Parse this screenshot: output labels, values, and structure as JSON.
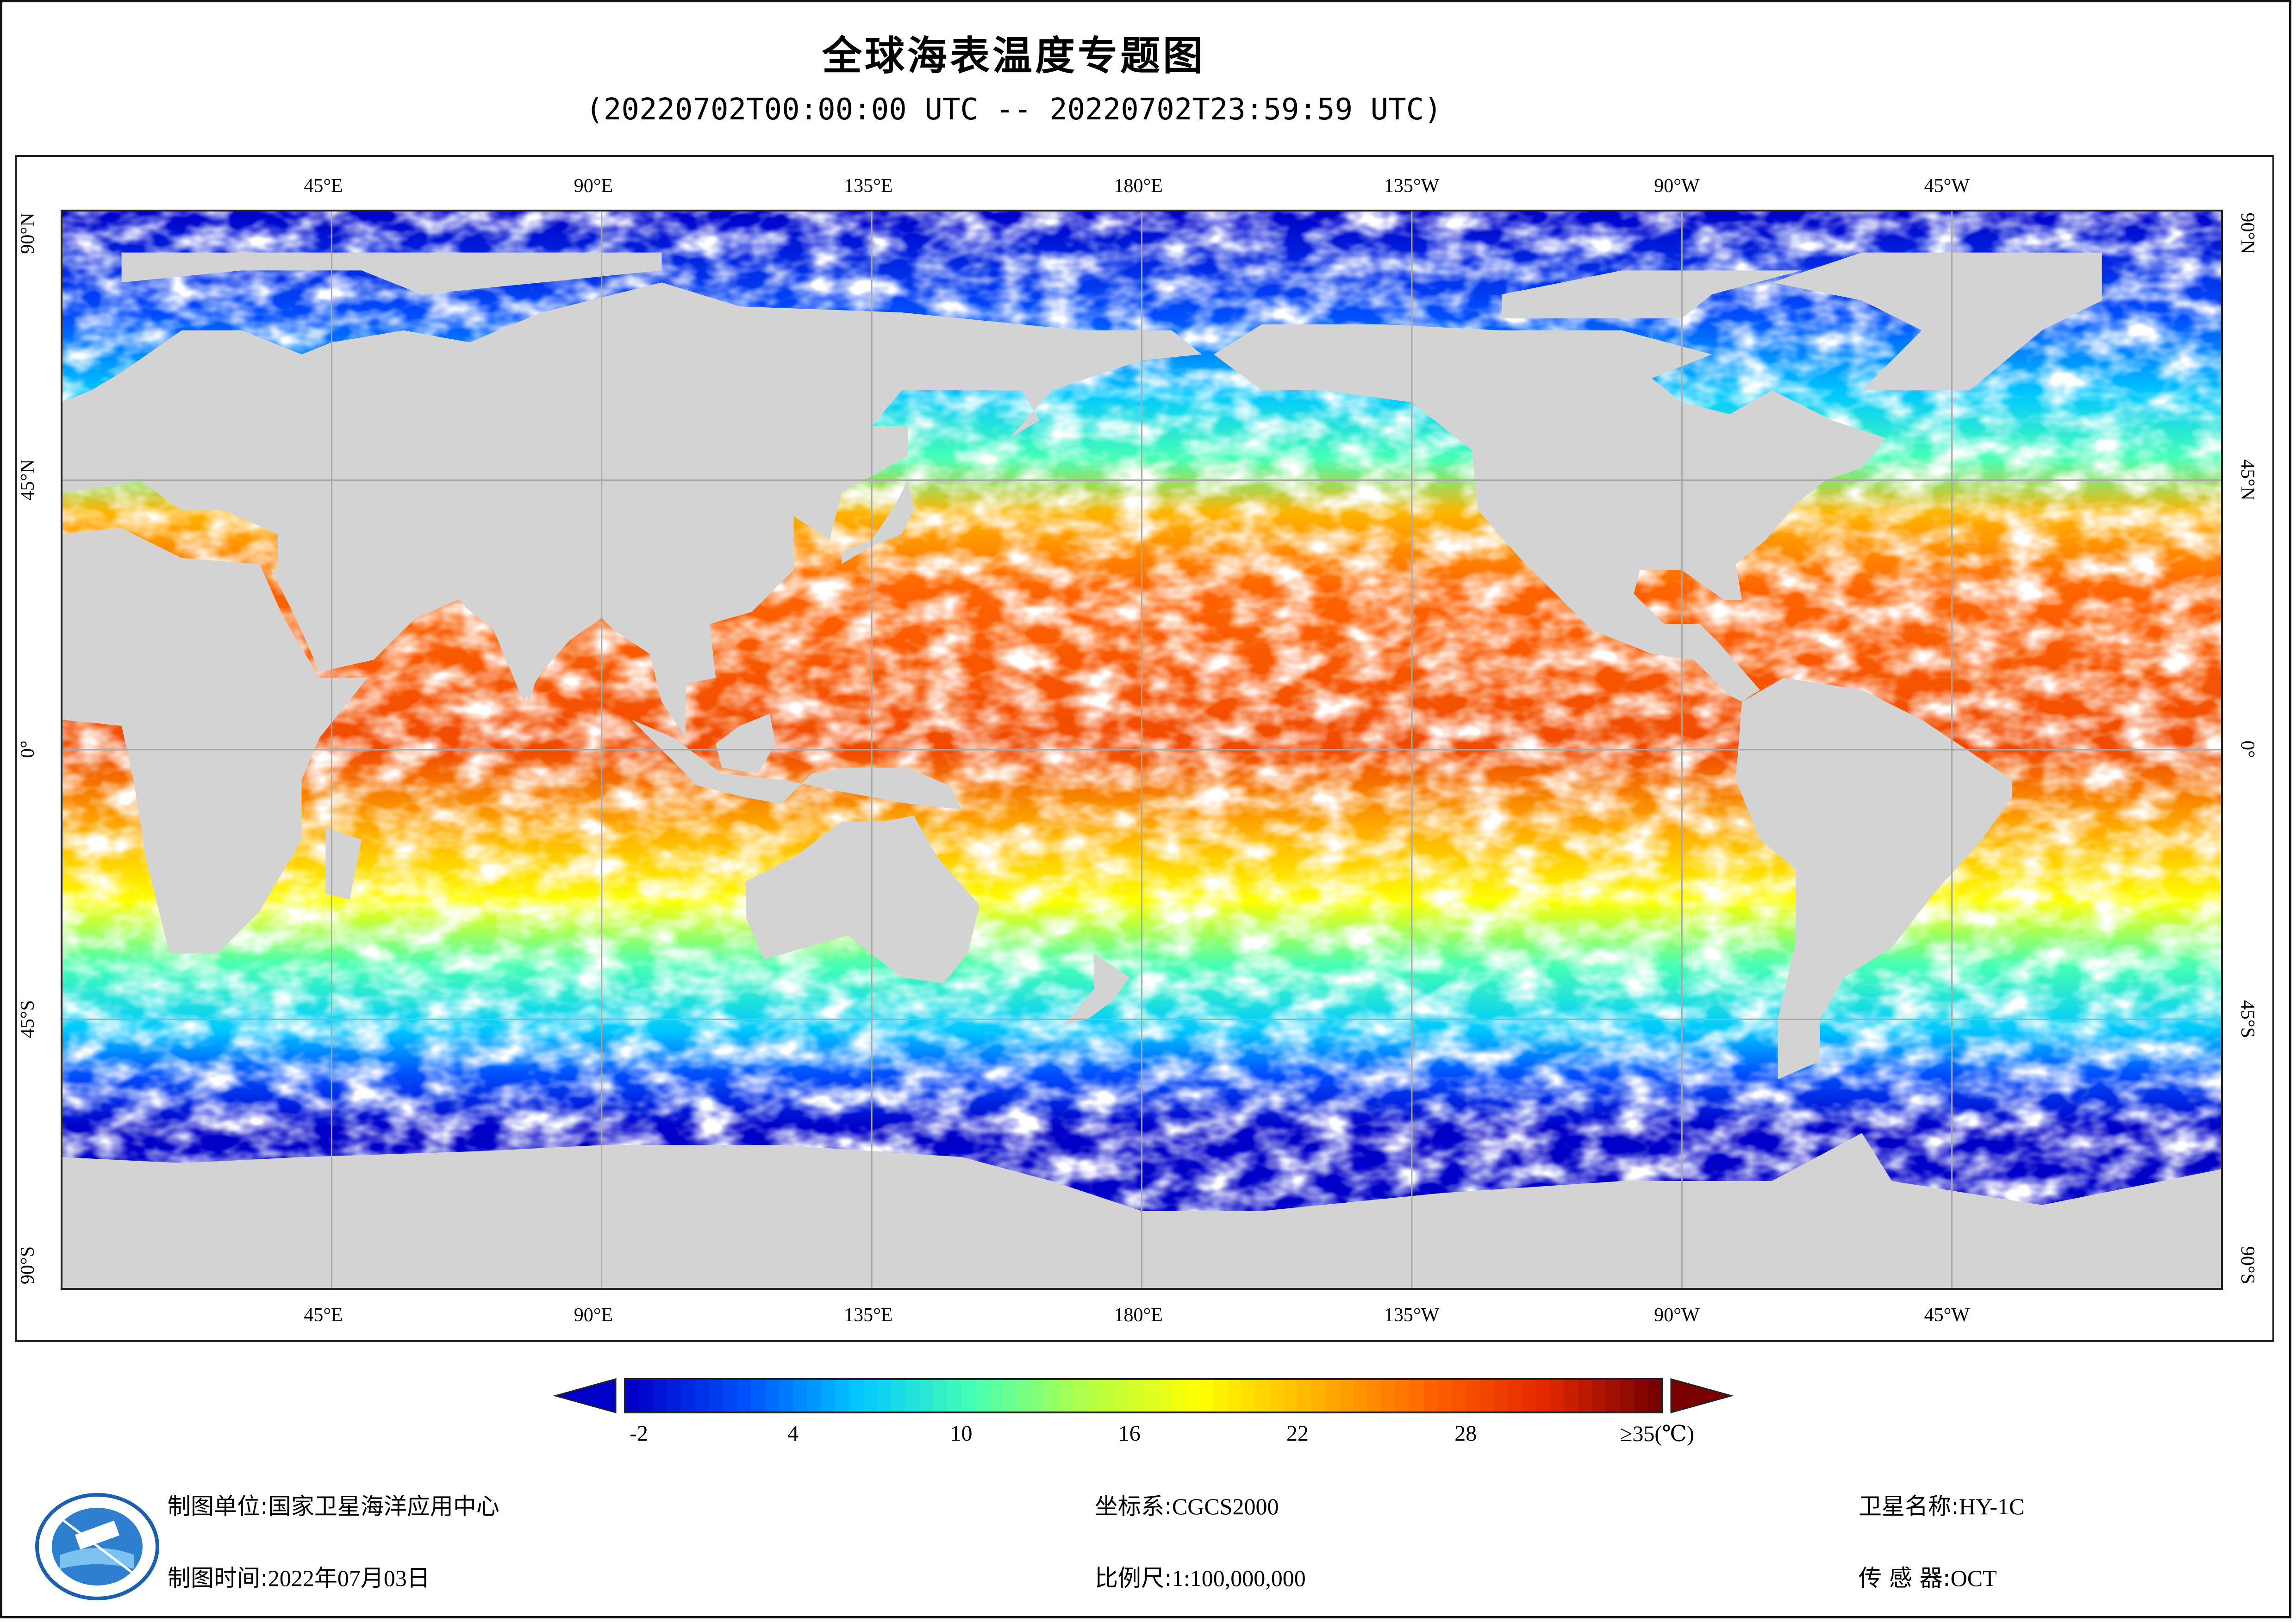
{
  "title": "全球海表温度专题图",
  "subtitle": "(20220702T00:00:00 UTC -- 20220702T23:59:59 UTC)",
  "map": {
    "lon_labels_top": [
      "45°E",
      "90°E",
      "135°E",
      "180°E",
      "135°W",
      "90°W",
      "45°W"
    ],
    "lon_labels_bottom": [
      "45°E",
      "90°E",
      "135°E",
      "180°E",
      "135°W",
      "90°W",
      "45°W"
    ],
    "lat_labels": [
      "90°N",
      "45°N",
      "0°",
      "45°S",
      "90°S"
    ],
    "colors": {
      "land": "#d3d3d3",
      "cloud": "#ffffff",
      "grid": "#a8a8a8"
    }
  },
  "colorbar": {
    "tick_labels": [
      "-2",
      "4",
      "10",
      "16",
      "22",
      "28",
      "≥35(℃)"
    ],
    "min": -2,
    "max": 35,
    "colors": [
      "#0000c8",
      "#0050ff",
      "#00c8ff",
      "#46ffb4",
      "#b4ff46",
      "#ffff00",
      "#ffb400",
      "#ff6400",
      "#e62800",
      "#780000"
    ]
  },
  "footer": {
    "org_label": "制图单位:",
    "org_value": "国家卫星海洋应用中心",
    "time_label": "制图时间:",
    "time_value": "2022年07月03日",
    "crs_label": "坐标系:",
    "crs_value": "CGCS2000",
    "scale_label": "比例尺:",
    "scale_value": "1:100,000,000",
    "sat_label": "卫星名称:",
    "sat_value": "HY-1C",
    "sensor_label": "传 感 器:",
    "sensor_value": "OCT"
  }
}
